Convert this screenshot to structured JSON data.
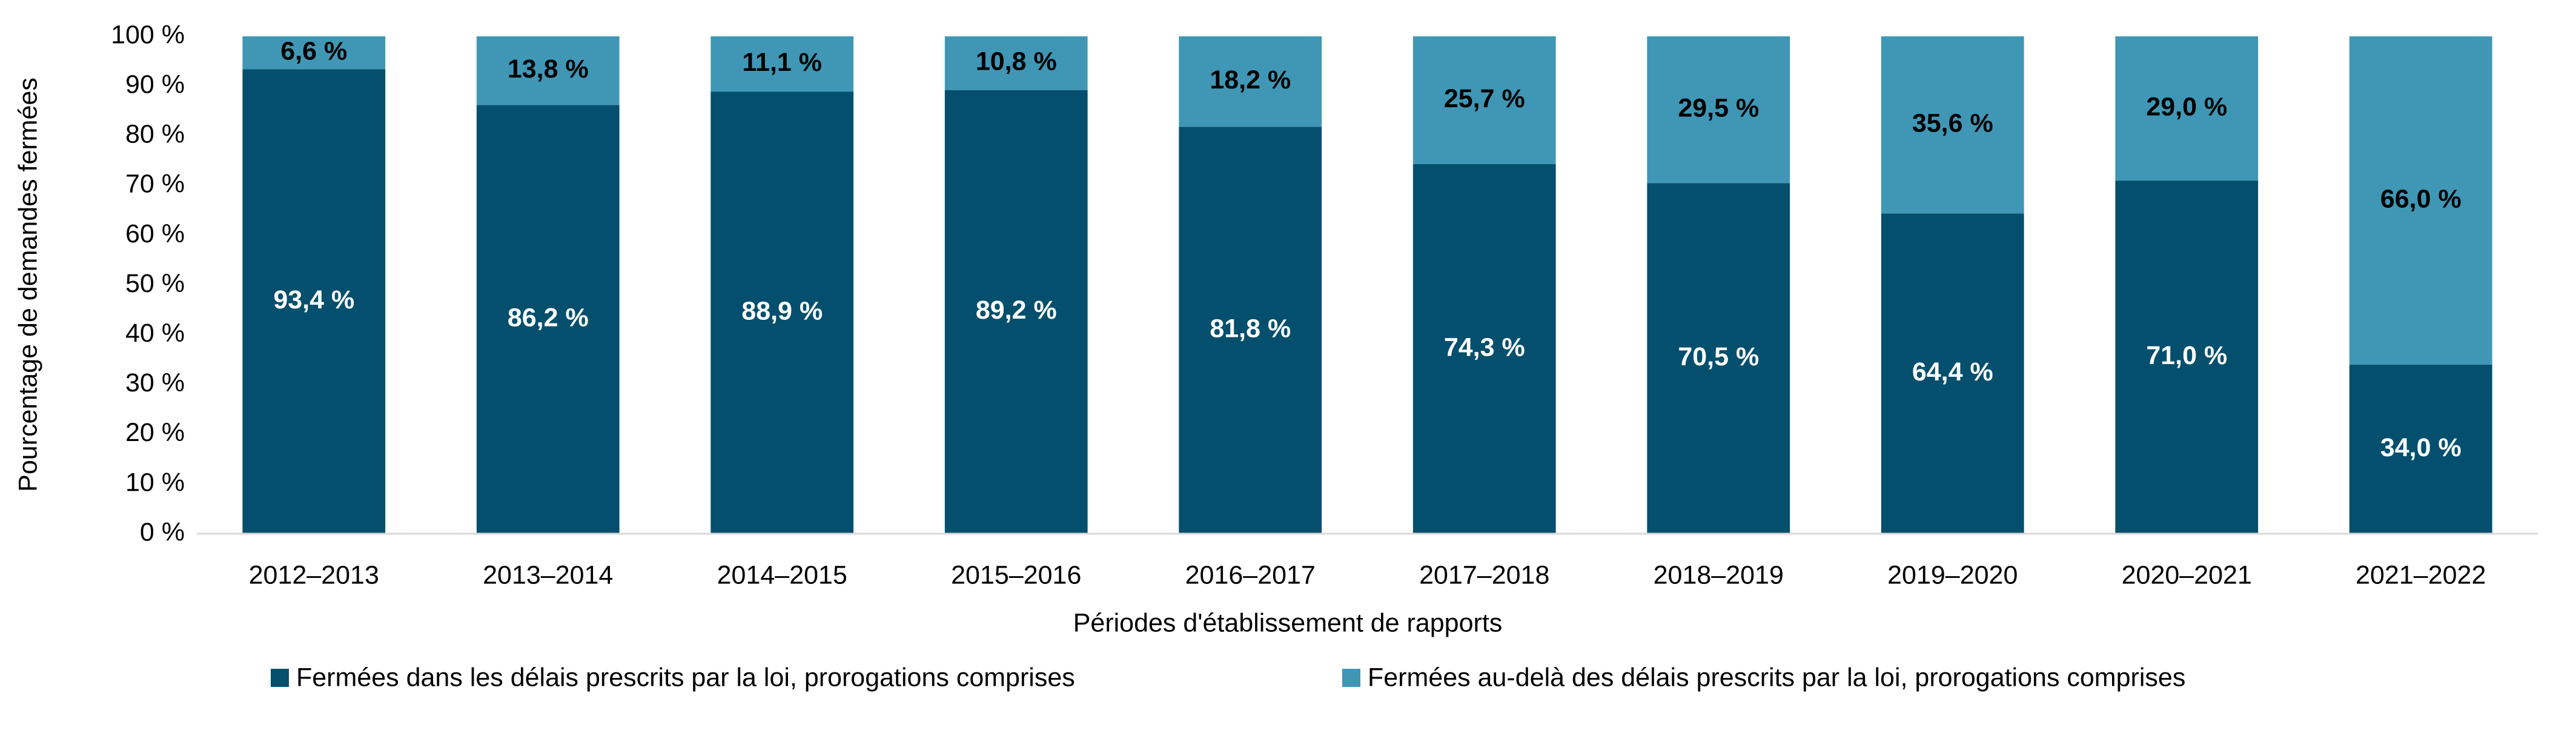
{
  "chart_data": {
    "type": "stacked_bar",
    "categories": [
      "2012–2013",
      "2013–2014",
      "2014–2015",
      "2015–2016",
      "2016–2017",
      "2017–2018",
      "2018–2019",
      "2019–2020",
      "2020–2021",
      "2021–2022"
    ],
    "series": [
      {
        "name": "Fermées dans les délais prescrits par la loi, prorogations comprises",
        "color": "#034f6d",
        "values": [
          93.4,
          86.2,
          88.9,
          89.2,
          81.8,
          74.3,
          70.5,
          64.4,
          71.0,
          34.0
        ],
        "value_labels": [
          "93,4 %",
          "86,2 %",
          "88,9 %",
          "89,2 %",
          "81,8 %",
          "74,3 %",
          "70,5 %",
          "64,4 %",
          "71,0 %",
          "34,0 %"
        ]
      },
      {
        "name": "Fermées au-delà des délais prescrits par la loi, prorogations comprises",
        "color": "#3f97b5",
        "values": [
          6.6,
          13.8,
          11.1,
          10.8,
          18.2,
          25.7,
          29.5,
          35.6,
          29.0,
          66.0
        ],
        "value_labels": [
          "6,6 %",
          "13,8 %",
          "11,1 %",
          "10,8 %",
          "18,2 %",
          "25,7 %",
          "29,5 %",
          "35,6 %",
          "29,0 %",
          "66,0 %"
        ]
      }
    ],
    "x_label": "Périodes d'établissement de rapports",
    "y_label": "Pourcentage de demandes fermées",
    "ylim": [
      0,
      100
    ],
    "yticks": [
      {
        "value": 0,
        "label": "0 %"
      },
      {
        "value": 10,
        "label": "10 %"
      },
      {
        "value": 20,
        "label": "20 %"
      },
      {
        "value": 30,
        "label": "30 %"
      },
      {
        "value": 40,
        "label": "40 %"
      },
      {
        "value": 50,
        "label": "50 %"
      },
      {
        "value": 60,
        "label": "60 %"
      },
      {
        "value": 70,
        "label": "70 %"
      },
      {
        "value": 80,
        "label": "80 %"
      },
      {
        "value": 90,
        "label": "90 %"
      },
      {
        "value": 100,
        "label": "100 %"
      }
    ],
    "grid": false,
    "legend": "bottom"
  }
}
